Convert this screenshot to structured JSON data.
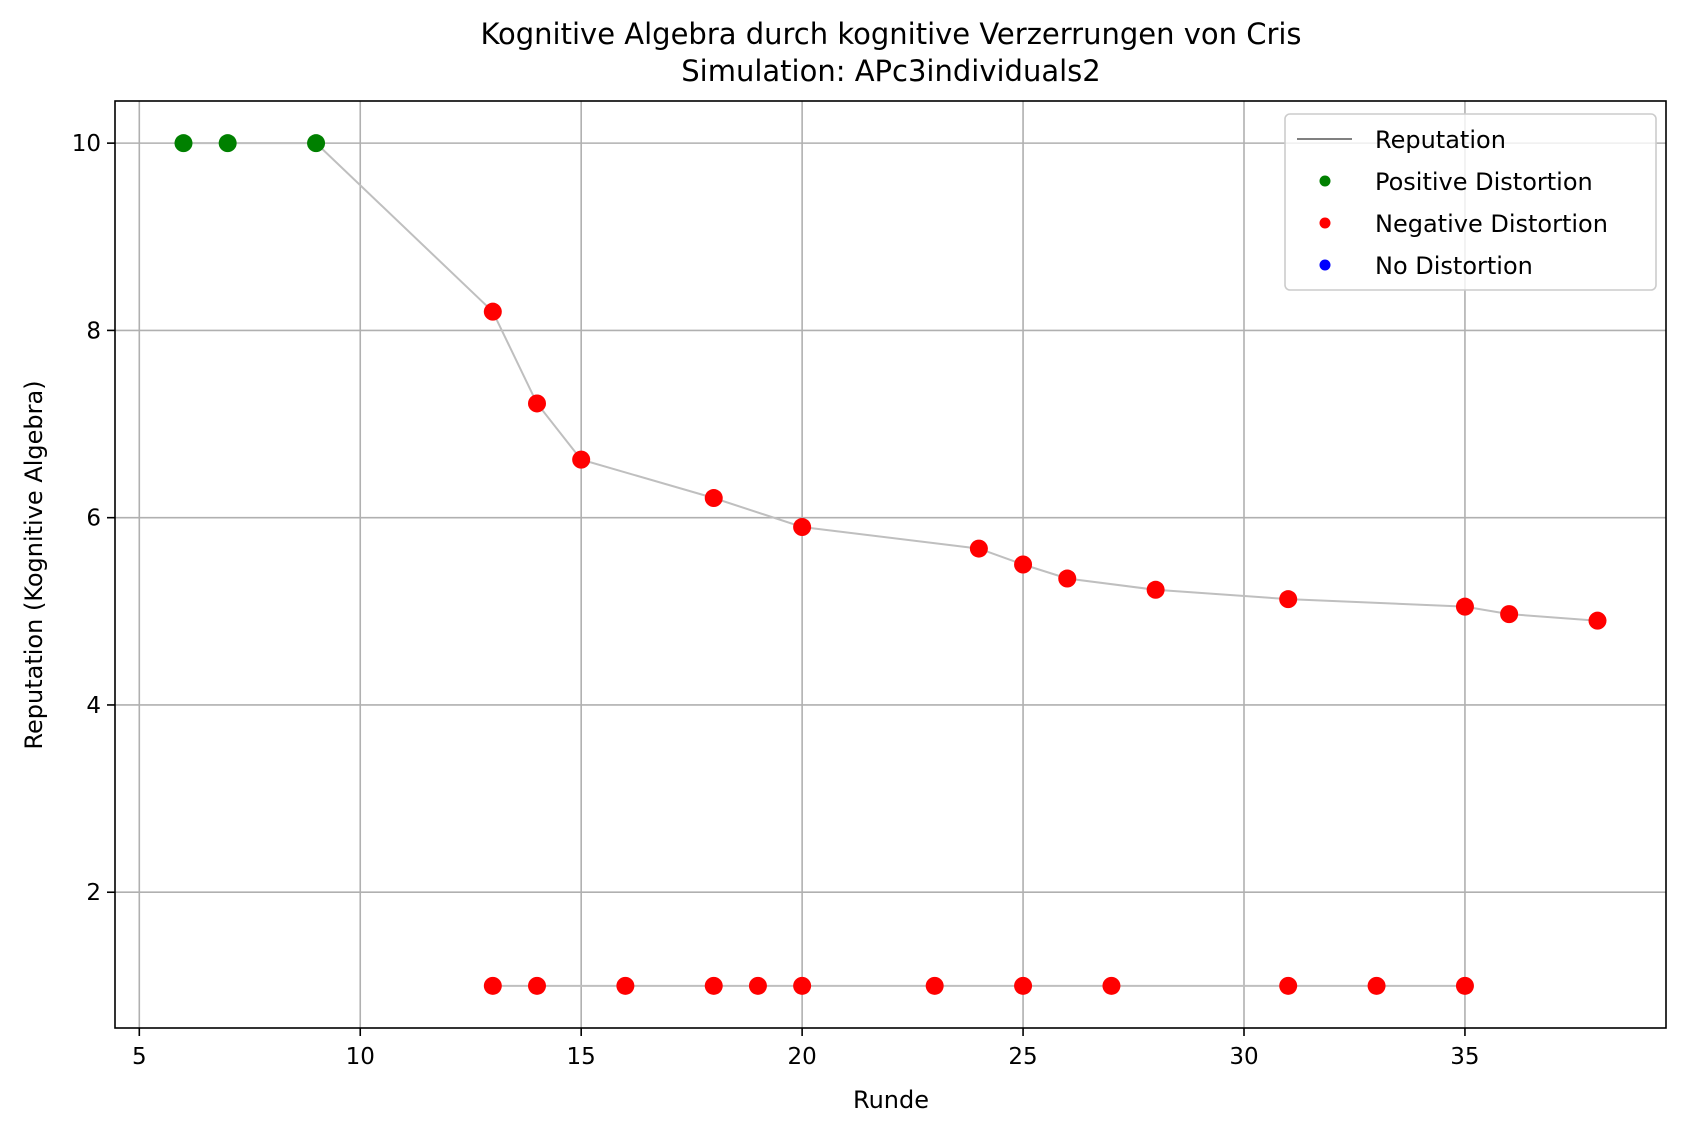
{
  "chart_data": {
    "type": "scatter",
    "title": "Kognitive Algebra durch kognitive Verzerrungen von Cris",
    "subtitle": "Simulation: APc3individuals2",
    "xlabel": "Runde",
    "ylabel": "Reputation (Kognitive Algebra)",
    "xlim": [
      4.45,
      39.55
    ],
    "ylim": [
      0.55,
      10.45
    ],
    "xticks": [
      5,
      10,
      15,
      20,
      25,
      30,
      35
    ],
    "yticks": [
      2,
      4,
      6,
      8,
      10
    ],
    "grid": true,
    "legend_position": "top-right",
    "colors": {
      "reputation_line": "#bfbfbf",
      "legend_line": "#808080",
      "positive": "#008000",
      "negative": "#ff0000",
      "none": "#0000ff"
    },
    "legend": [
      {
        "label": "Reputation",
        "kind": "line",
        "color": "#808080"
      },
      {
        "label": "Positive Distortion",
        "kind": "marker",
        "color": "#008000"
      },
      {
        "label": "Negative Distortion",
        "kind": "marker",
        "color": "#ff0000"
      },
      {
        "label": "No Distortion",
        "kind": "marker",
        "color": "#0000ff"
      }
    ],
    "series": [
      {
        "name": "Reputation",
        "x": [
          6,
          7,
          9,
          13,
          14,
          15,
          18,
          20,
          24,
          25,
          26,
          28,
          31,
          35,
          36,
          38
        ],
        "y": [
          10,
          10,
          10,
          8.2,
          7.22,
          6.62,
          6.21,
          5.9,
          5.67,
          5.5,
          5.35,
          5.23,
          5.13,
          5.05,
          4.97,
          4.9
        ],
        "distortion": [
          "positive",
          "positive",
          "positive",
          "negative",
          "negative",
          "negative",
          "negative",
          "negative",
          "negative",
          "negative",
          "negative",
          "negative",
          "negative",
          "negative",
          "negative",
          "negative"
        ]
      },
      {
        "x": [
          13,
          14,
          16,
          18,
          19,
          20,
          23,
          25,
          27,
          31,
          33,
          35
        ],
        "y": [
          1,
          1,
          1,
          1,
          1,
          1,
          1,
          1,
          1,
          1,
          1,
          1
        ],
        "distortion": [
          "negative",
          "negative",
          "negative",
          "negative",
          "negative",
          "negative",
          "negative",
          "negative",
          "negative",
          "negative",
          "negative",
          "negative"
        ]
      }
    ]
  }
}
